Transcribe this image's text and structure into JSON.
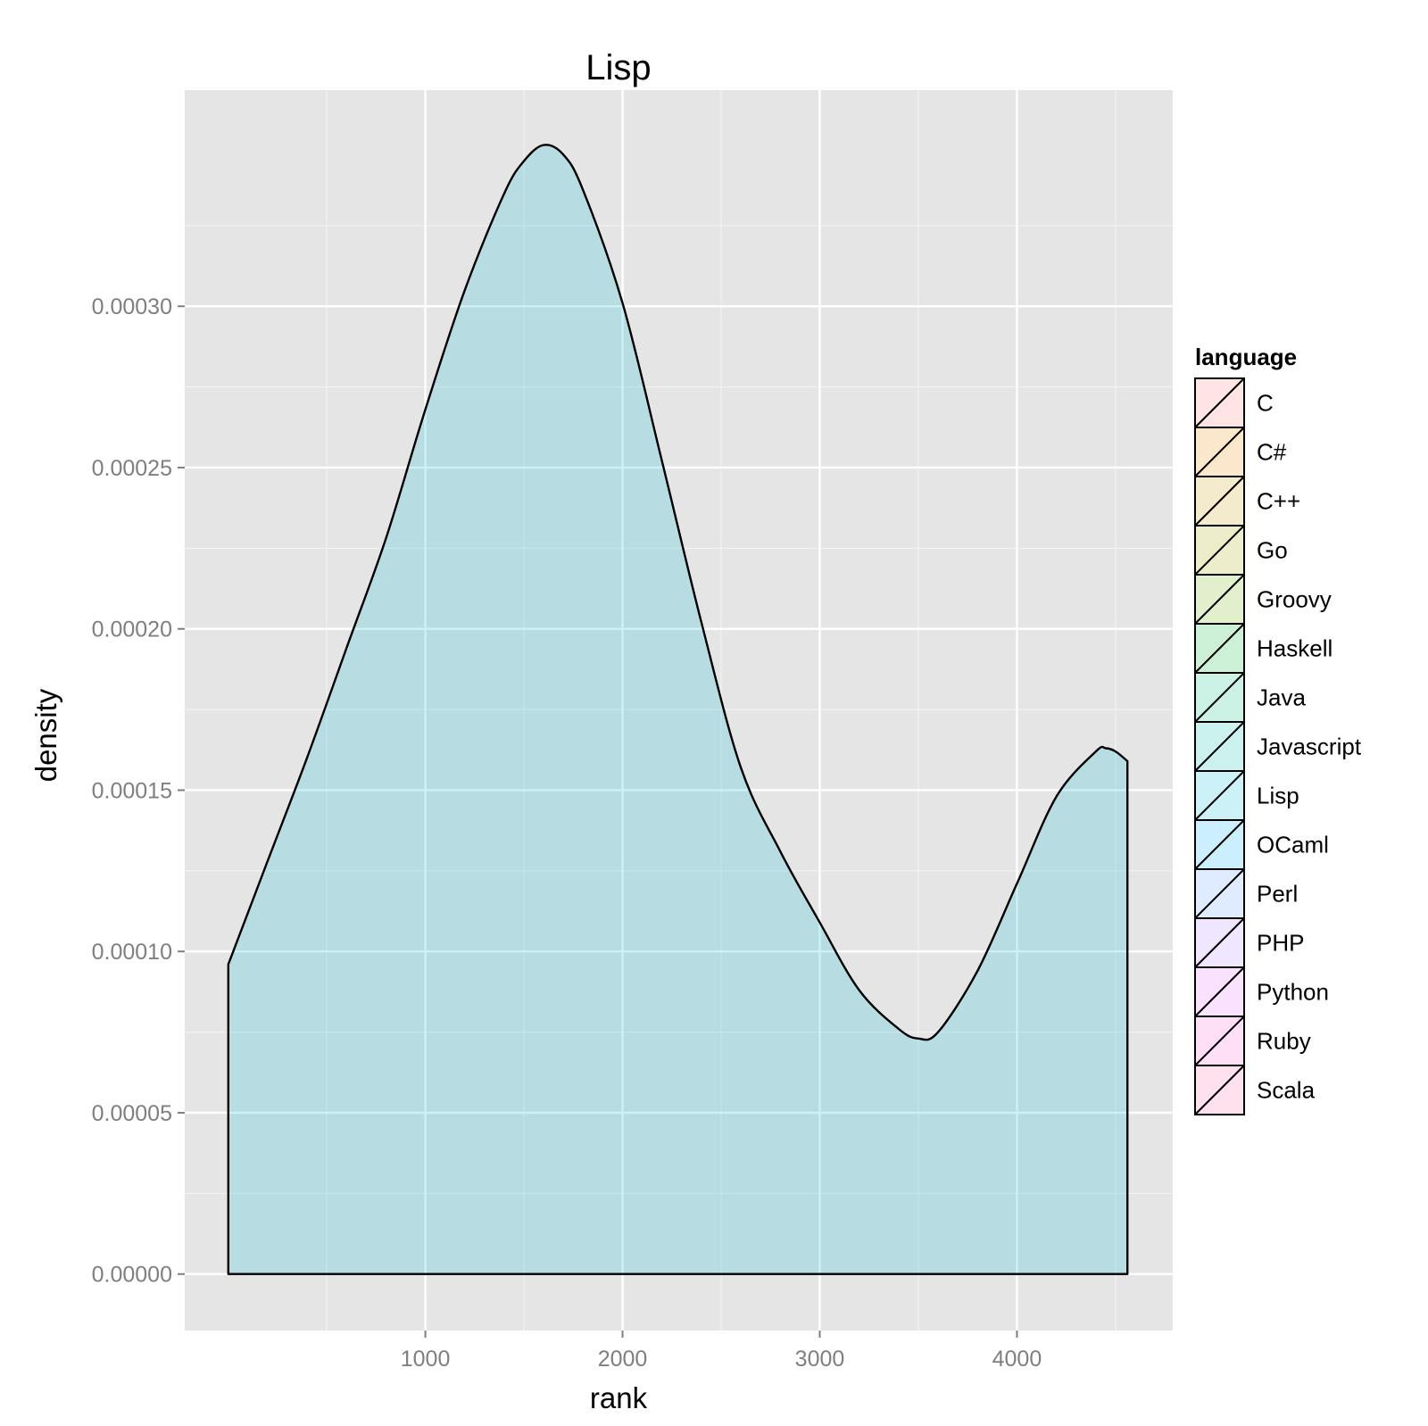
{
  "chart_data": {
    "type": "area",
    "title": "Lisp",
    "xlabel": "rank",
    "ylabel": "density",
    "xlim": [
      -220,
      4790
    ],
    "ylim": [
      -1.75e-05,
      0.000367
    ],
    "x_ticks": [
      1000,
      2000,
      3000,
      4000
    ],
    "x_tick_labels": [
      "1000",
      "2000",
      "3000",
      "4000"
    ],
    "y_ticks": [
      0,
      5e-05,
      0.0001,
      0.00015,
      0.0002,
      0.00025,
      0.0003
    ],
    "y_tick_labels": [
      "0.00000",
      "0.00005",
      "0.00010",
      "0.00015",
      "0.00020",
      "0.00025",
      "0.00030"
    ],
    "grid": true,
    "legend": {
      "title": "language",
      "position": "right",
      "entries": [
        {
          "label": "C",
          "color": "#F8766D"
        },
        {
          "label": "C#",
          "color": "#E58700"
        },
        {
          "label": "C++",
          "color": "#C99800"
        },
        {
          "label": "Go",
          "color": "#A3A500"
        },
        {
          "label": "Groovy",
          "color": "#6BB100"
        },
        {
          "label": "Haskell",
          "color": "#00BA38"
        },
        {
          "label": "Java",
          "color": "#00BF7D"
        },
        {
          "label": "Javascript",
          "color": "#00C0AF"
        },
        {
          "label": "Lisp",
          "color": "#00BCD8"
        },
        {
          "label": "OCaml",
          "color": "#00B0F6"
        },
        {
          "label": "Perl",
          "color": "#619CFF"
        },
        {
          "label": "PHP",
          "color": "#B983FF"
        },
        {
          "label": "Python",
          "color": "#E76BF3"
        },
        {
          "label": "Ruby",
          "color": "#FD61D1"
        },
        {
          "label": "Scala",
          "color": "#FF67A4"
        }
      ]
    },
    "series": [
      {
        "name": "Lisp",
        "color": "#00BCD8",
        "x": [
          1,
          200,
          400,
          600,
          800,
          1000,
          1200,
          1400,
          1500,
          1600,
          1700,
          1800,
          2000,
          2200,
          2400,
          2600,
          2800,
          3000,
          3200,
          3400,
          3500,
          3600,
          3800,
          4000,
          4200,
          4400,
          4450,
          4500,
          4560
        ],
        "y": [
          9.6e-05,
          0.000128,
          0.00016,
          0.000194,
          0.000228,
          0.000268,
          0.000305,
          0.000335,
          0.000345,
          0.00035,
          0.000347,
          0.000336,
          0.000301,
          0.000252,
          0.000202,
          0.000157,
          0.000131,
          0.000109,
          8.8e-05,
          7.6e-05,
          7.3e-05,
          7.5e-05,
          9.4e-05,
          0.000121,
          0.000148,
          0.000162,
          0.000163,
          0.000162,
          0.000159
        ]
      }
    ]
  }
}
